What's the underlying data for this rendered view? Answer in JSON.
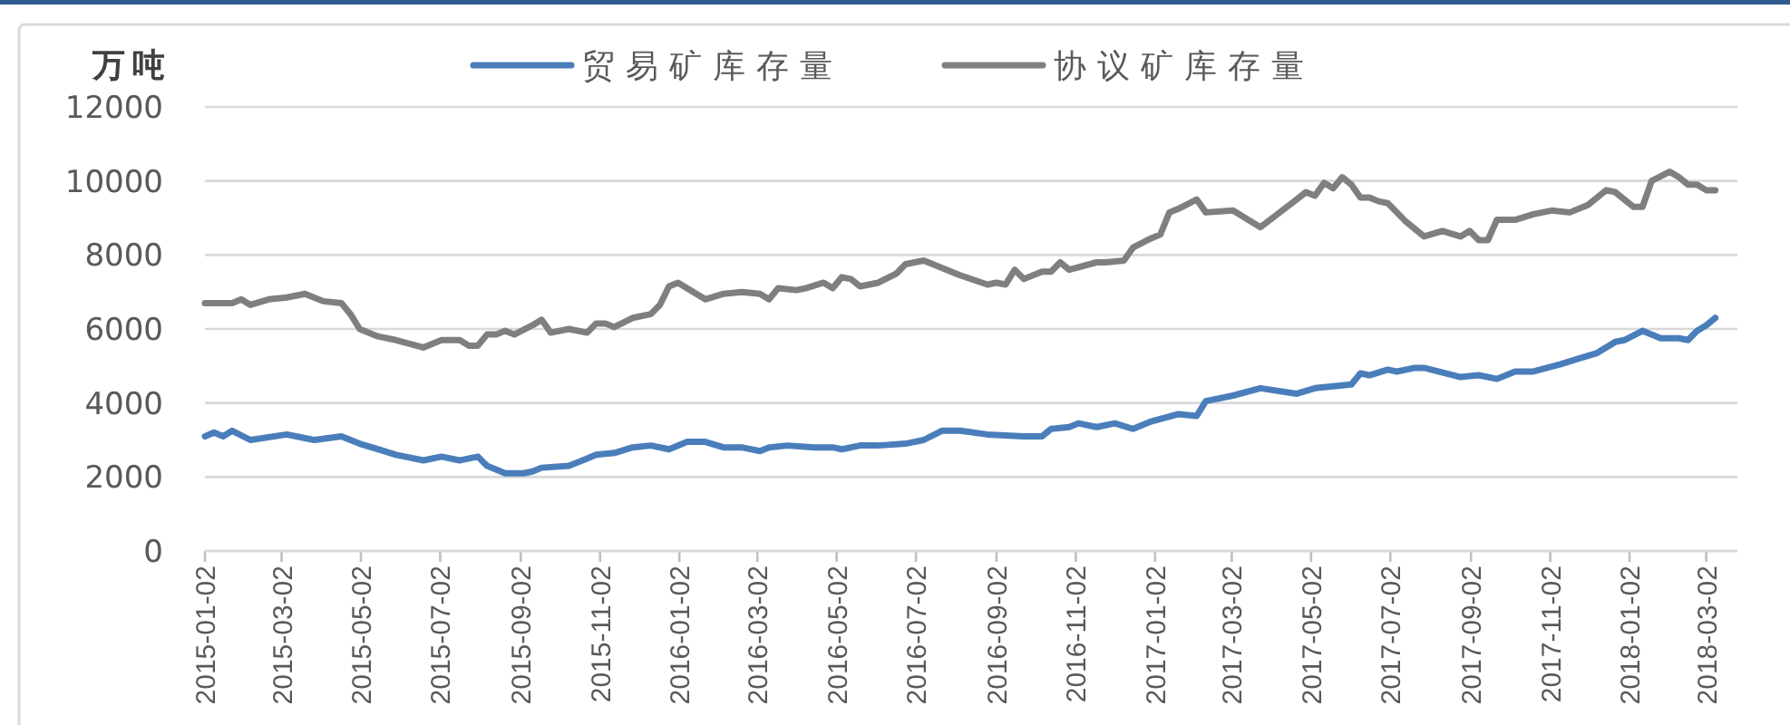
{
  "chart_data": {
    "type": "line",
    "ylabel": "万吨",
    "series": [
      {
        "name": "贸易矿库存量",
        "color": "#4a7ebb",
        "x": [
          "2015-01-02",
          "2015-01-09",
          "2015-01-16",
          "2015-01-23",
          "2015-02-06",
          "2015-03-06",
          "2015-03-20",
          "2015-03-27",
          "2015-04-17",
          "2015-05-01",
          "2015-05-15",
          "2015-05-29",
          "2015-06-19",
          "2015-07-03",
          "2015-07-17",
          "2015-07-31",
          "2015-08-07",
          "2015-08-21",
          "2015-09-04",
          "2015-09-11",
          "2015-09-18",
          "2015-10-09",
          "2015-10-23",
          "2015-10-30",
          "2015-11-13",
          "2015-11-27",
          "2015-12-11",
          "2015-12-25",
          "2016-01-08",
          "2016-01-22",
          "2016-02-05",
          "2016-02-19",
          "2016-03-04",
          "2016-03-11",
          "2016-03-25",
          "2016-04-15",
          "2016-04-29",
          "2016-05-06",
          "2016-05-20",
          "2016-06-03",
          "2016-06-24",
          "2016-07-08",
          "2016-07-22",
          "2016-08-05",
          "2016-08-26",
          "2016-09-23",
          "2016-10-07",
          "2016-10-14",
          "2016-10-28",
          "2016-11-04",
          "2016-11-18",
          "2016-12-02",
          "2016-12-16",
          "2016-12-30",
          "2017-01-20",
          "2017-02-03",
          "2017-02-10",
          "2017-03-03",
          "2017-03-24",
          "2017-04-21",
          "2017-05-05",
          "2017-06-02",
          "2017-06-09",
          "2017-06-16",
          "2017-06-30",
          "2017-07-07",
          "2017-07-21",
          "2017-07-28",
          "2017-08-25",
          "2017-09-08",
          "2017-09-22",
          "2017-10-06",
          "2017-10-20",
          "2017-11-10",
          "2017-11-24",
          "2017-12-08",
          "2017-12-22",
          "2017-12-29",
          "2018-01-12",
          "2018-01-26",
          "2018-02-09",
          "2018-02-16",
          "2018-02-23",
          "2018-03-02",
          "2018-03-09"
        ],
        "values": [
          3100,
          3200,
          3100,
          3250,
          3000,
          3150,
          3050,
          3000,
          3100,
          2900,
          2750,
          2600,
          2450,
          2550,
          2450,
          2550,
          2300,
          2100,
          2100,
          2150,
          2250,
          2300,
          2500,
          2600,
          2650,
          2800,
          2850,
          2750,
          2950,
          2950,
          2800,
          2800,
          2700,
          2800,
          2850,
          2800,
          2800,
          2750,
          2850,
          2850,
          2900,
          3000,
          3250,
          3250,
          3150,
          3100,
          3100,
          3300,
          3350,
          3450,
          3350,
          3450,
          3300,
          3500,
          3700,
          3650,
          4050,
          4200,
          4400,
          4250,
          4400,
          4500,
          4800,
          4750,
          4900,
          4850,
          4950,
          4950,
          4700,
          4750,
          4650,
          4850,
          4850,
          5050,
          5200,
          5350,
          5650,
          5700,
          5950,
          5750,
          5750,
          5700,
          5950,
          6100,
          6300
        ]
      },
      {
        "name": "协议矿库存量",
        "color": "#7f7f7f",
        "x": [
          "2015-01-02",
          "2015-01-23",
          "2015-01-30",
          "2015-02-06",
          "2015-02-20",
          "2015-03-06",
          "2015-03-13",
          "2015-03-20",
          "2015-04-03",
          "2015-04-17",
          "2015-04-24",
          "2015-05-01",
          "2015-05-15",
          "2015-05-29",
          "2015-06-19",
          "2015-07-03",
          "2015-07-17",
          "2015-07-24",
          "2015-07-31",
          "2015-08-07",
          "2015-08-14",
          "2015-08-21",
          "2015-08-28",
          "2015-09-11",
          "2015-09-18",
          "2015-09-25",
          "2015-10-09",
          "2015-10-23",
          "2015-10-30",
          "2015-11-06",
          "2015-11-13",
          "2015-11-27",
          "2015-12-11",
          "2015-12-18",
          "2015-12-25",
          "2016-01-01",
          "2016-01-22",
          "2016-02-05",
          "2016-02-19",
          "2016-03-04",
          "2016-03-11",
          "2016-03-18",
          "2016-04-01",
          "2016-04-08",
          "2016-04-22",
          "2016-04-29",
          "2016-05-06",
          "2016-05-13",
          "2016-05-20",
          "2016-06-03",
          "2016-06-17",
          "2016-06-24",
          "2016-07-08",
          "2016-07-15",
          "2016-07-29",
          "2016-08-05",
          "2016-08-26",
          "2016-09-02",
          "2016-09-09",
          "2016-09-16",
          "2016-09-23",
          "2016-10-07",
          "2016-10-14",
          "2016-10-21",
          "2016-10-28",
          "2016-11-18",
          "2016-11-25",
          "2016-12-09",
          "2016-12-16",
          "2016-12-30",
          "2017-01-06",
          "2017-01-13",
          "2017-01-20",
          "2017-02-03",
          "2017-02-10",
          "2017-03-03",
          "2017-03-24",
          "2017-04-21",
          "2017-04-28",
          "2017-05-05",
          "2017-05-12",
          "2017-05-19",
          "2017-05-26",
          "2017-06-02",
          "2017-06-09",
          "2017-06-16",
          "2017-06-23",
          "2017-06-30",
          "2017-07-14",
          "2017-07-28",
          "2017-08-11",
          "2017-08-25",
          "2017-09-01",
          "2017-09-08",
          "2017-09-15",
          "2017-09-22",
          "2017-10-06",
          "2017-10-20",
          "2017-11-03",
          "2017-11-17",
          "2017-12-01",
          "2017-12-15",
          "2017-12-22",
          "2018-01-05",
          "2018-01-12",
          "2018-01-19",
          "2018-02-02",
          "2018-02-09",
          "2018-02-16",
          "2018-02-23",
          "2018-03-02",
          "2018-03-09"
        ],
        "values": [
          6700,
          6700,
          6800,
          6650,
          6800,
          6850,
          6900,
          6950,
          6750,
          6700,
          6400,
          6000,
          5800,
          5700,
          5500,
          5700,
          5700,
          5550,
          5550,
          5850,
          5850,
          5950,
          5850,
          6100,
          6250,
          5900,
          6000,
          5900,
          6150,
          6150,
          6050,
          6300,
          6400,
          6650,
          7150,
          7250,
          6800,
          6950,
          7000,
          6950,
          6800,
          7100,
          7050,
          7100,
          7250,
          7100,
          7400,
          7350,
          7150,
          7250,
          7500,
          7750,
          7850,
          7750,
          7550,
          7450,
          7200,
          7250,
          7200,
          7600,
          7350,
          7550,
          7550,
          7800,
          7600,
          7800,
          7800,
          7850,
          8200,
          8450,
          8550,
          9150,
          9250,
          9500,
          9150,
          9200,
          8750,
          9500,
          9700,
          9600,
          9950,
          9800,
          10100,
          9900,
          9550,
          9550,
          9450,
          9400,
          8900,
          8500,
          8650,
          8500,
          8650,
          8400,
          8400,
          8950,
          8950,
          9100,
          9200,
          9150,
          9350,
          9750,
          9700,
          9300,
          9300,
          10000,
          10250,
          10100,
          9900,
          9900,
          9750,
          9750
        ]
      }
    ],
    "xlim": [
      "2015-01-02",
      "2018-03-26"
    ],
    "xticks": [
      {
        "value": "2015-01-02",
        "label": "2015-01-02"
      },
      {
        "value": "2015-03-02",
        "label": "2015-03-02"
      },
      {
        "value": "2015-05-02",
        "label": "2015-05-02"
      },
      {
        "value": "2015-07-02",
        "label": "2015-07-02"
      },
      {
        "value": "2015-09-02",
        "label": "2015-09-02"
      },
      {
        "value": "2015-11-02",
        "label": "2015-11-02"
      },
      {
        "value": "2016-01-02",
        "label": "2016-01-02"
      },
      {
        "value": "2016-03-02",
        "label": "2016-03-02"
      },
      {
        "value": "2016-05-02",
        "label": "2016-05-02"
      },
      {
        "value": "2016-07-02",
        "label": "2016-07-02"
      },
      {
        "value": "2016-09-02",
        "label": "2016-09-02"
      },
      {
        "value": "2016-11-02",
        "label": "2016-11-02"
      },
      {
        "value": "2017-01-02",
        "label": "2017-01-02"
      },
      {
        "value": "2017-03-02",
        "label": "2017-03-02"
      },
      {
        "value": "2017-05-02",
        "label": "2017-05-02"
      },
      {
        "value": "2017-07-02",
        "label": "2017-07-02"
      },
      {
        "value": "2017-09-02",
        "label": "2017-09-02"
      },
      {
        "value": "2017-11-02",
        "label": "2017-11-02"
      },
      {
        "value": "2018-01-02",
        "label": "2018-01-02"
      },
      {
        "value": "2018-03-02",
        "label": "2018-03-02"
      }
    ],
    "ylim": [
      0,
      12000
    ],
    "yticks": [
      0,
      2000,
      4000,
      6000,
      8000,
      10000,
      12000
    ],
    "grid": "y",
    "legend": "top",
    "line_style": "solid"
  }
}
